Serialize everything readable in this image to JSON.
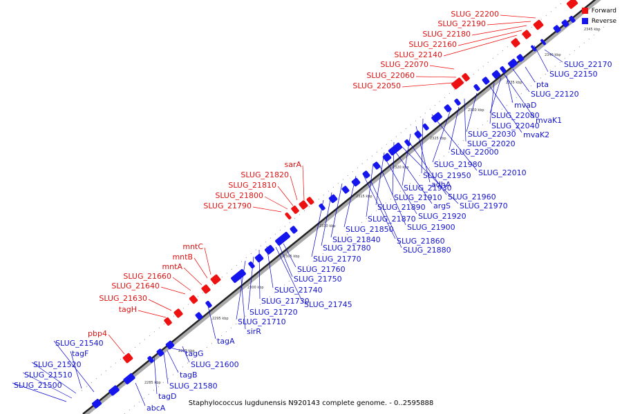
{
  "legend": {
    "forward_label": "Forward",
    "reverse_label": "Reverse",
    "forward_color": "#ee1111",
    "reverse_color": "#1515ee"
  },
  "caption": "Staphylococcus lugdunensis N920143 complete genome. - 0..2595888",
  "ticks": [
    "2285 kbp",
    "2290 kbp",
    "2295 kbp",
    "2300 kbp",
    "2305 kbp",
    "2310 kbp",
    "2315 kbp",
    "2320 kbp",
    "2325 kbp",
    "2330 kbp",
    "2335 kbp",
    "2340 kbp",
    "2345 kbp"
  ],
  "forward_labels": [
    "SLUG_22200",
    "SLUG_22190",
    "SLUG_22180",
    "SLUG_22160",
    "SLUG_22140",
    "SLUG_22070",
    "SLUG_22060",
    "SLUG_22050",
    "sarA",
    "SLUG_21820",
    "SLUG_21810",
    "SLUG_21800",
    "SLUG_21790",
    "mntC",
    "mntB",
    "mntA",
    "SLUG_21660",
    "SLUG_21640",
    "SLUG_21630",
    "tagH",
    "pbp4"
  ],
  "reverse_labels": [
    "SLUG_22170",
    "SLUG_22150",
    "pta",
    "SLUG_22120",
    "mvaD",
    "SLUG_22080",
    "mvaK1",
    "SLUG_22040",
    "mvaK2",
    "SLUG_22030",
    "SLUG_22020",
    "SLUG_22000",
    "SLUG_21980",
    "SLUG_22010",
    "SLUG_21950",
    "adhA",
    "SLUG_21930",
    "SLUG_21960",
    "SLUG_21910",
    "SLUG_21970",
    "SLUG_21890",
    "argS",
    "SLUG_21920",
    "SLUG_21870",
    "SLUG_21900",
    "SLUG_21850",
    "SLUG_21840",
    "SLUG_21860",
    "SLUG_21780",
    "SLUG_21880",
    "SLUG_21770",
    "SLUG_21760",
    "SLUG_21750",
    "SLUG_21740",
    "SLUG_21730",
    "SLUG_21745",
    "SLUG_21720",
    "SLUG_21710",
    "sirR",
    "tagA",
    "SLUG_21600",
    "tagG",
    "tagB",
    "SLUG_21580",
    "tagD",
    "abcA",
    "SLUG_21540",
    "tagF",
    "SLUG_21520",
    "SLUG_21510",
    "SLUG_21500"
  ]
}
